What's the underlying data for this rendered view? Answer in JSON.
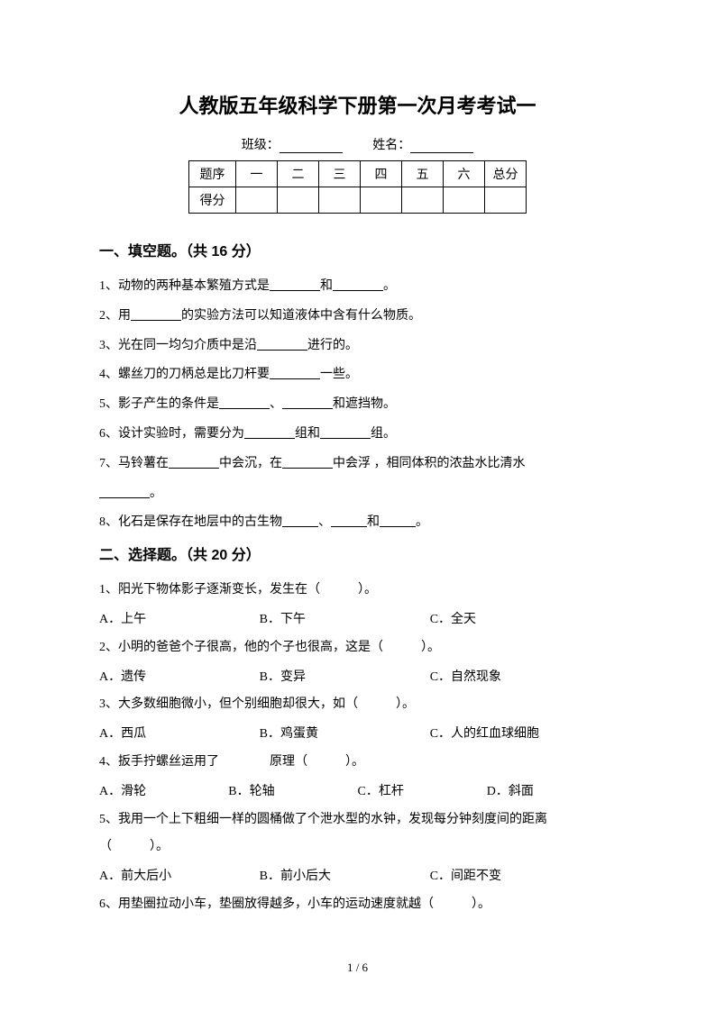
{
  "title": "人教版五年级科学下册第一次月考考试一",
  "info": {
    "class_label": "班级：",
    "name_label": "姓名："
  },
  "score_table": {
    "row_header_1": "题序",
    "row_header_2": "得分",
    "cols": [
      "一",
      "二",
      "三",
      "四",
      "五",
      "六",
      "总分"
    ]
  },
  "section1": {
    "heading": "一、填空题。（共 16 分）",
    "q1_a": "1、动物的两种基本繁殖方式是",
    "q1_b": "和",
    "q1_c": "。",
    "q2_a": "2、用",
    "q2_b": "的实验方法可以知道液体中含有什么物质。",
    "q3_a": "3、光在同一均匀介质中是沿",
    "q3_b": "进行的。",
    "q4_a": "4、螺丝刀的刀柄总是比刀杆要",
    "q4_b": "一些。",
    "q5_a": "5、影子产生的条件是",
    "q5_b": "、",
    "q5_c": "和遮挡物。",
    "q6_a": "6、设计实验时，需要分为",
    "q6_b": "组和",
    "q6_c": "组。",
    "q7_a": "7、马铃薯在",
    "q7_b": "中会沉，在",
    "q7_c": "中会浮 ，相同体积的浓盐水比清水",
    "q7_d": "。",
    "q8_a": "8、化石是保存在地层中的古生物",
    "q8_b": "、",
    "q8_c": "和",
    "q8_d": "。"
  },
  "section2": {
    "heading": "二、选择题。（共 20 分）",
    "q1": "1、阳光下物体影子逐渐变长，发生在（　　　）。",
    "q1a": "A．上午",
    "q1b": "B．下午",
    "q1c": "C．全天",
    "q2": "2、小明的爸爸个子很高，他的个子也很高，这是（　　　）。",
    "q2a": "A．遗传",
    "q2b": "B．变异",
    "q2c": "C．自然现象",
    "q3": "3、大多数细胞微小，但个别细胞却很大，如（　　　）。",
    "q3a": "A．西瓜",
    "q3b": "B．鸡蛋黄",
    "q3c": "C．人的红血球细胞",
    "q4": "4、扳手拧螺丝运用了　　　　原理（　　　）。",
    "q4a": "A．滑轮",
    "q4b": "B．轮轴",
    "q4c": "C．杠杆",
    "q4d": "D．斜面",
    "q5": "5、我用一个上下粗细一样的圆桶做了个泄水型的水钟，发现每分钟刻度间的距离（　　　）。",
    "q5a": "A．前大后小",
    "q5b": "B．前小后大",
    "q5c": "C．间距不变",
    "q6": "6、用垫圈拉动小车，垫圈放得越多，小车的运动速度就越（　　　）。"
  },
  "page_number": "1 / 6"
}
